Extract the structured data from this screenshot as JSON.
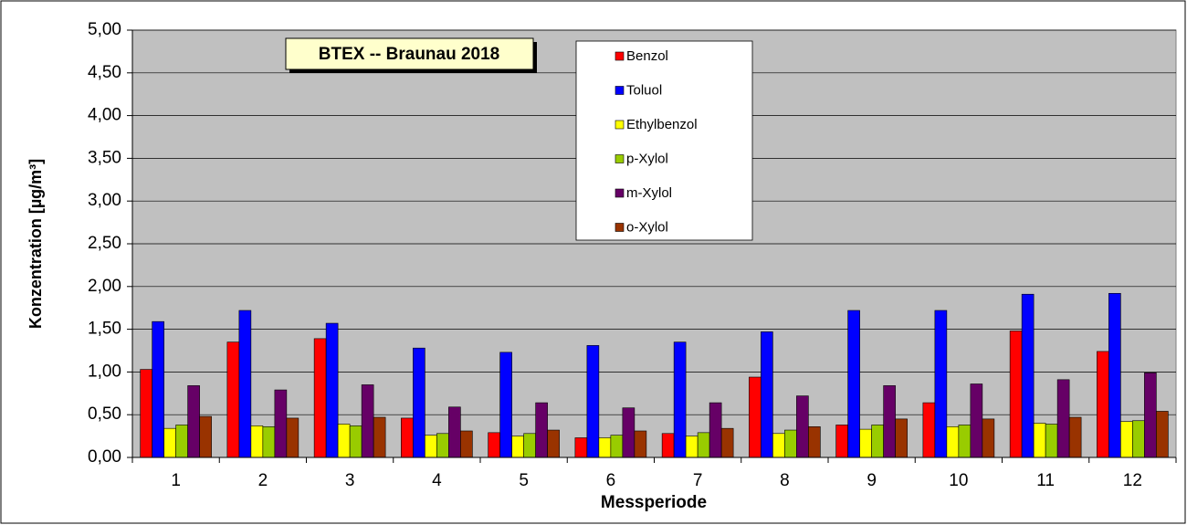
{
  "chart_data": {
    "type": "bar",
    "title": "BTEX -- Braunau 2018",
    "x_label": "Messperiode",
    "y_label": "Konzentration [µg/m³]",
    "categories": [
      "1",
      "2",
      "3",
      "4",
      "5",
      "6",
      "7",
      "8",
      "9",
      "10",
      "11",
      "12"
    ],
    "series": [
      {
        "name": "Benzol",
        "color": "#ff0000",
        "values": [
          1.03,
          1.35,
          1.39,
          0.46,
          0.29,
          0.23,
          0.28,
          0.94,
          0.38,
          0.64,
          1.48,
          1.24
        ]
      },
      {
        "name": "Toluol",
        "color": "#0000ff",
        "values": [
          1.59,
          1.72,
          1.57,
          1.28,
          1.23,
          1.31,
          1.35,
          1.47,
          1.72,
          1.72,
          1.91,
          1.92
        ]
      },
      {
        "name": "Ethylbenzol",
        "color": "#ffff00",
        "values": [
          0.34,
          0.37,
          0.39,
          0.26,
          0.25,
          0.23,
          0.25,
          0.28,
          0.33,
          0.36,
          0.4,
          0.42
        ]
      },
      {
        "name": "p-Xylol",
        "color": "#99cc00",
        "values": [
          0.38,
          0.36,
          0.37,
          0.28,
          0.28,
          0.26,
          0.29,
          0.32,
          0.38,
          0.38,
          0.39,
          0.43
        ]
      },
      {
        "name": "m-Xylol",
        "color": "#660066",
        "values": [
          0.84,
          0.79,
          0.85,
          0.59,
          0.64,
          0.58,
          0.64,
          0.72,
          0.84,
          0.86,
          0.91,
          0.99
        ]
      },
      {
        "name": "o-Xylol",
        "color": "#993300",
        "values": [
          0.48,
          0.46,
          0.47,
          0.31,
          0.32,
          0.31,
          0.34,
          0.36,
          0.45,
          0.45,
          0.47,
          0.54
        ]
      }
    ],
    "ylim": [
      0,
      5
    ],
    "yticks": [
      {
        "value": 0,
        "label": "0,00"
      },
      {
        "value": 0.5,
        "label": "0,50"
      },
      {
        "value": 1,
        "label": "1,00"
      },
      {
        "value": 1.5,
        "label": "1,50"
      },
      {
        "value": 2,
        "label": "2,00"
      },
      {
        "value": 2.5,
        "label": "2,50"
      },
      {
        "value": 3,
        "label": "3,00"
      },
      {
        "value": 3.5,
        "label": "3,50"
      },
      {
        "value": 4,
        "label": "4,00"
      },
      {
        "value": 4.5,
        "label": "4,50"
      },
      {
        "value": 5,
        "label": "5,00"
      }
    ],
    "grid": true,
    "legend": "top"
  }
}
